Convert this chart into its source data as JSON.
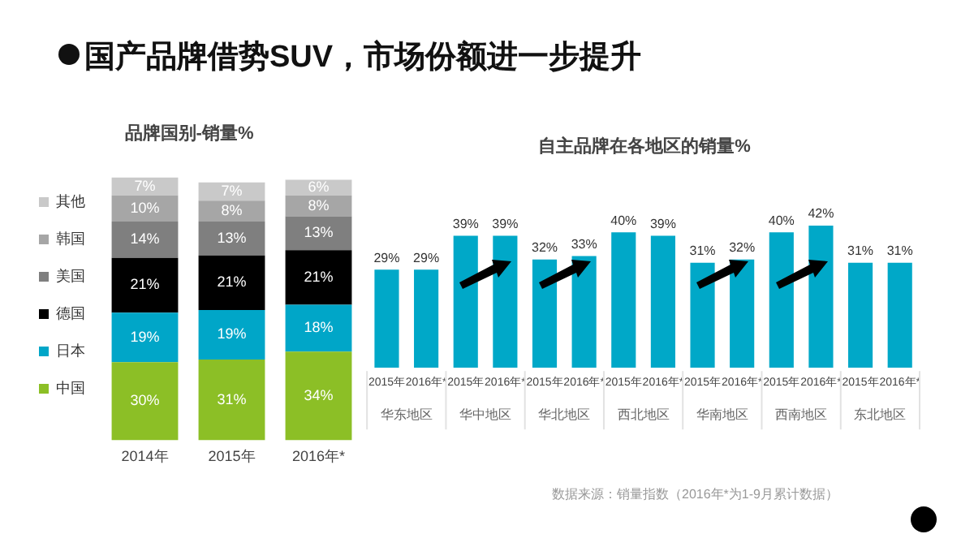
{
  "chart_data": [
    {
      "type": "bar",
      "title": "品牌国别-销量%",
      "stacked": true,
      "legend": "left",
      "tick_labels": "x",
      "grid": false,
      "categories": [
        "2014年",
        "2015年",
        "2016年*"
      ],
      "annotations": [
        "国产品牌借势SUV，市场份额进一步提升",
        "数据来源：销量指数（2016年*为1-9月累计数据）"
      ],
      "series": [
        {
          "name": "中国",
          "color": "#8cbf26",
          "values": [
            30,
            31,
            34
          ],
          "value_labels": [
            "30%",
            "31%",
            "34%"
          ]
        },
        {
          "name": "日本",
          "color": "#00a6c8",
          "values": [
            19,
            19,
            18
          ],
          "value_labels": [
            "19%",
            "19%",
            "18%"
          ]
        },
        {
          "name": "德国",
          "color": "#000000",
          "values": [
            21,
            21,
            21
          ],
          "value_labels": [
            "21%",
            "21%",
            "21%"
          ]
        },
        {
          "name": "美国",
          "color": "#7f7f7f",
          "values": [
            14,
            13,
            13
          ],
          "value_labels": [
            "14%",
            "13%",
            "13%"
          ]
        },
        {
          "name": "韩国",
          "color": "#a6a6a6",
          "values": [
            10,
            8,
            8
          ],
          "value_labels": [
            "10%",
            "8%",
            "8%"
          ]
        },
        {
          "name": "其他",
          "color": "#c9c9c9",
          "values": [
            7,
            7,
            6
          ],
          "value_labels": [
            "7%",
            "7%",
            "6%"
          ]
        }
      ]
    },
    {
      "type": "bar",
      "title": "自主品牌在各地区的销量%",
      "legend": false,
      "tick_labels": "x",
      "grid": false,
      "color": "#00a8c8",
      "categories": [
        "2015年",
        "2016年*",
        "2015年",
        "2016年*",
        "2015年",
        "2016年*",
        "2015年",
        "2016年*",
        "2015年",
        "2016年*",
        "2015年",
        "2016年*",
        "2015年",
        "2016年*"
      ],
      "values": [
        29,
        29,
        39,
        39,
        32,
        33,
        40,
        39,
        31,
        32,
        40,
        42,
        31,
        31
      ],
      "value_labels": [
        "29%",
        "29%",
        "39%",
        "39%",
        "32%",
        "33%",
        "40%",
        "39%",
        "31%",
        "32%",
        "40%",
        "42%",
        "31%",
        "31%"
      ],
      "annotations": [
        "华东地区",
        "华中地区",
        "华北地区",
        "西北地区",
        "华南地区",
        "西南地区",
        "东北地区"
      ]
    }
  ]
}
